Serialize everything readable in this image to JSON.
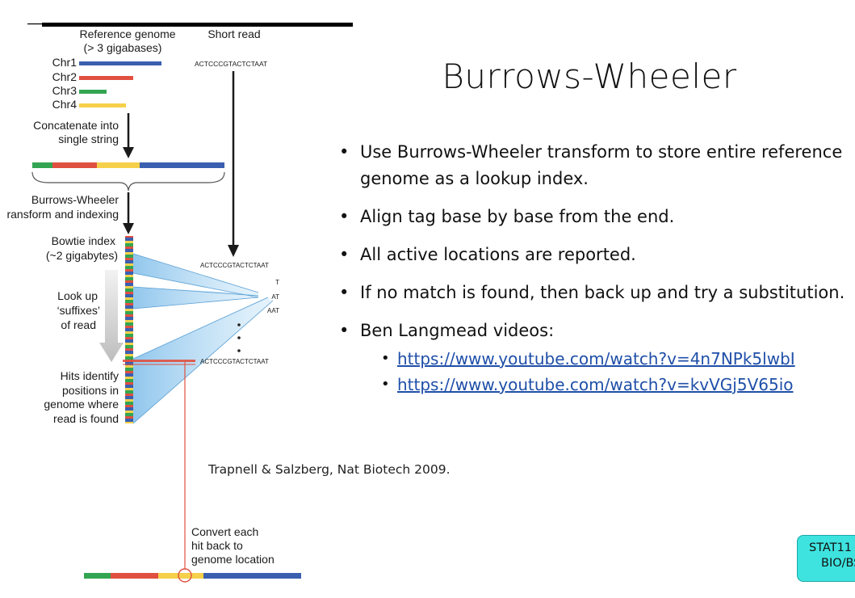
{
  "slide": {
    "title": "Burrows-Wheeler",
    "bullets": [
      "Use Burrows-Wheeler transform to store entire reference genome as a lookup index.",
      "Align tag base by base from the end.",
      "All active locations are reported.",
      "If no match is found, then back up and try a substitution.",
      "Ben Langmead videos:"
    ],
    "links": [
      "https://www.youtube.com/watch?v=4n7NPk5lwbI",
      "https://www.youtube.com/watch?v=kvVGj5V65io"
    ],
    "citation": "Trapnell & Salzberg, Nat Biotech 2009.",
    "badge_line1": "STAT11",
    "badge_line2": "BIO/BS"
  },
  "figure": {
    "header_reference_line1": "Reference genome",
    "header_reference_line2": "(> 3 gigabases)",
    "header_short_read": "Short read",
    "chromosomes": [
      "Chr1",
      "Chr2",
      "Chr3",
      "Chr4"
    ],
    "read_sequence": "ACTCCCGTACTCTAAT",
    "read_sequence_aligned": "ACTCCCGTACTCTAAT",
    "read_sequence_hit": "ACTCCCGTACTCTAAT",
    "suffixes": [
      "T",
      "AT",
      "AAT"
    ],
    "step_concatenate_line1": "Concatenate into",
    "step_concatenate_line2": "single string",
    "step_bw_line1": "Burrows-Wheeler",
    "step_bw_line2": "ransform and indexing",
    "index_label_line1": "Bowtie index",
    "index_label_line2": "(~2 gigabytes)",
    "lookup_line1": "Look up",
    "lookup_line2": "‘suffixes’",
    "lookup_line3": "of read",
    "hits_line1": "Hits identify",
    "hits_line2": "positions in",
    "hits_line3": "genome where",
    "hits_line4": "read is found",
    "convert_line1": "Convert each",
    "convert_line2": "hit back to",
    "convert_line3": "genome location"
  },
  "colors": {
    "blue": "#3a5fb0",
    "red": "#e05040",
    "green": "#33a552",
    "yellow": "#f6d04a",
    "light_blue": "#8cc4ec",
    "badge": "#3ee3df",
    "link": "#1f4fa8"
  }
}
